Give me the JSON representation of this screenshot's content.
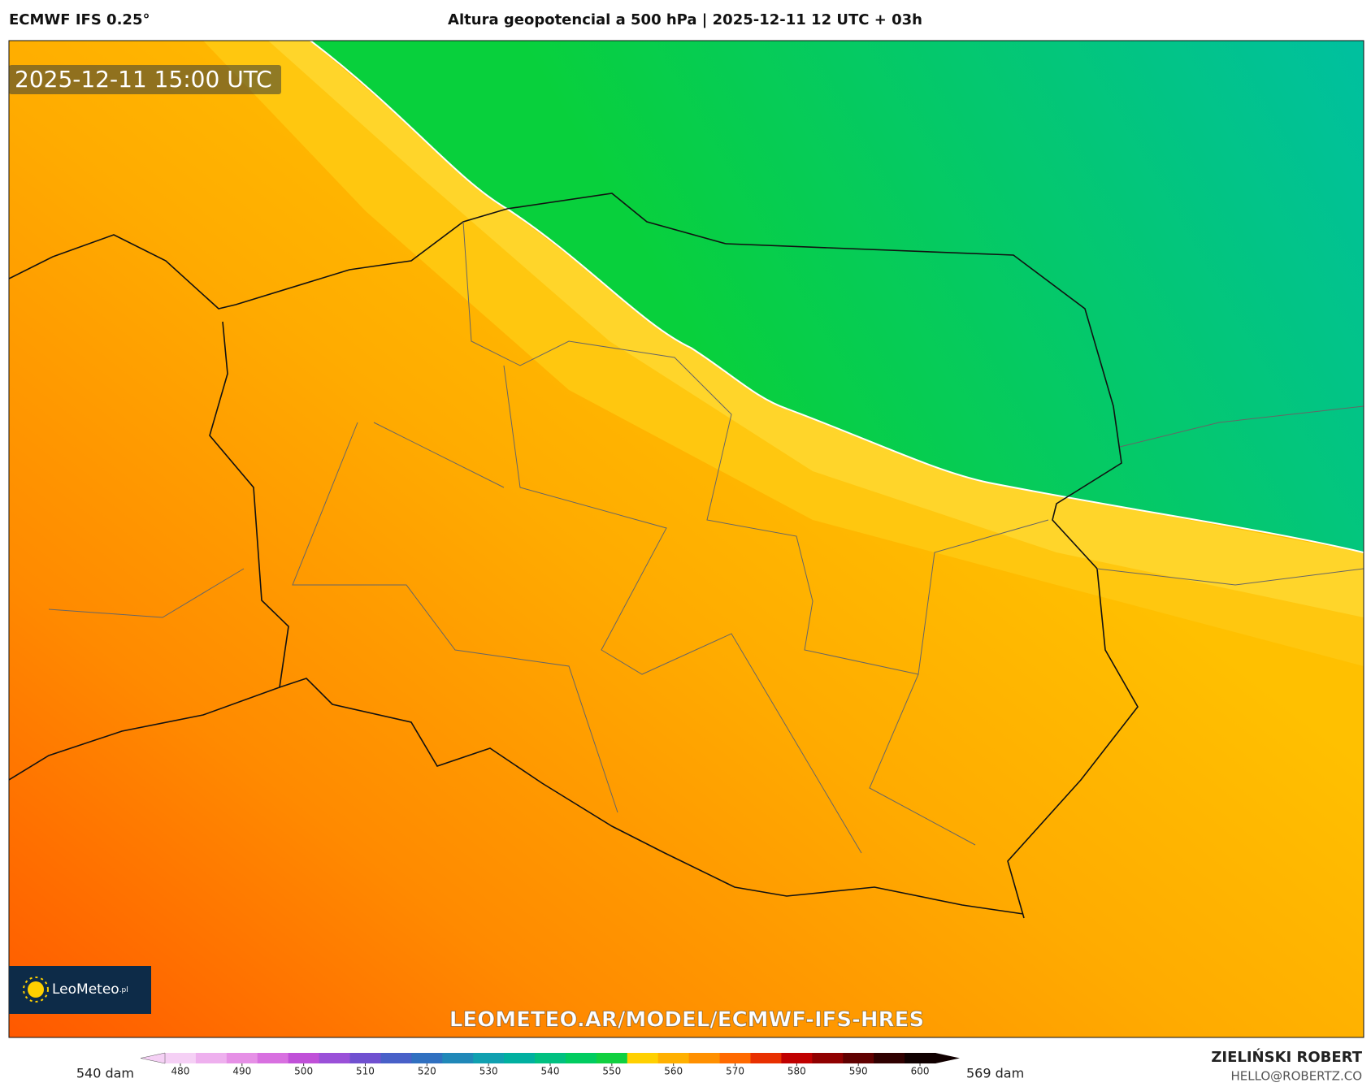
{
  "header": {
    "model": "ECMWF IFS 0.25°",
    "title": "Altura geopotencial a 500 hPa | 2025-12-11 12 UTC + 03h"
  },
  "map": {
    "timestamp": "2025-12-11 15:00 UTC",
    "logo": {
      "text": "LeoMeteo",
      "suffix": ".pl"
    },
    "watermark": "LEOMETEO.AR/MODEL/ECMWF-IFS-HRES"
  },
  "colorbar": {
    "min_label": "540 dam",
    "max_label": "569 dam",
    "lim": [
      477.5,
      602.5
    ],
    "ticks": [
      480,
      490,
      500,
      510,
      520,
      530,
      540,
      550,
      560,
      570,
      580,
      590,
      600
    ],
    "colors": [
      "#f5d0f5",
      "#eeb0ee",
      "#e690e6",
      "#d870e0",
      "#c050d8",
      "#9a50d8",
      "#7050d0",
      "#4860c8",
      "#3070c0",
      "#2088b8",
      "#10a0b0",
      "#00b0a0",
      "#00c080",
      "#00cc60",
      "#10d040",
      "#ffd000",
      "#ffb000",
      "#ff9000",
      "#ff6a00",
      "#e83000",
      "#c00000",
      "#900000",
      "#600000",
      "#300000",
      "#100000"
    ]
  },
  "footer": {
    "author": "ZIELIŃSKI ROBERT",
    "email": "HELLO@ROBERTZ.CO"
  }
}
